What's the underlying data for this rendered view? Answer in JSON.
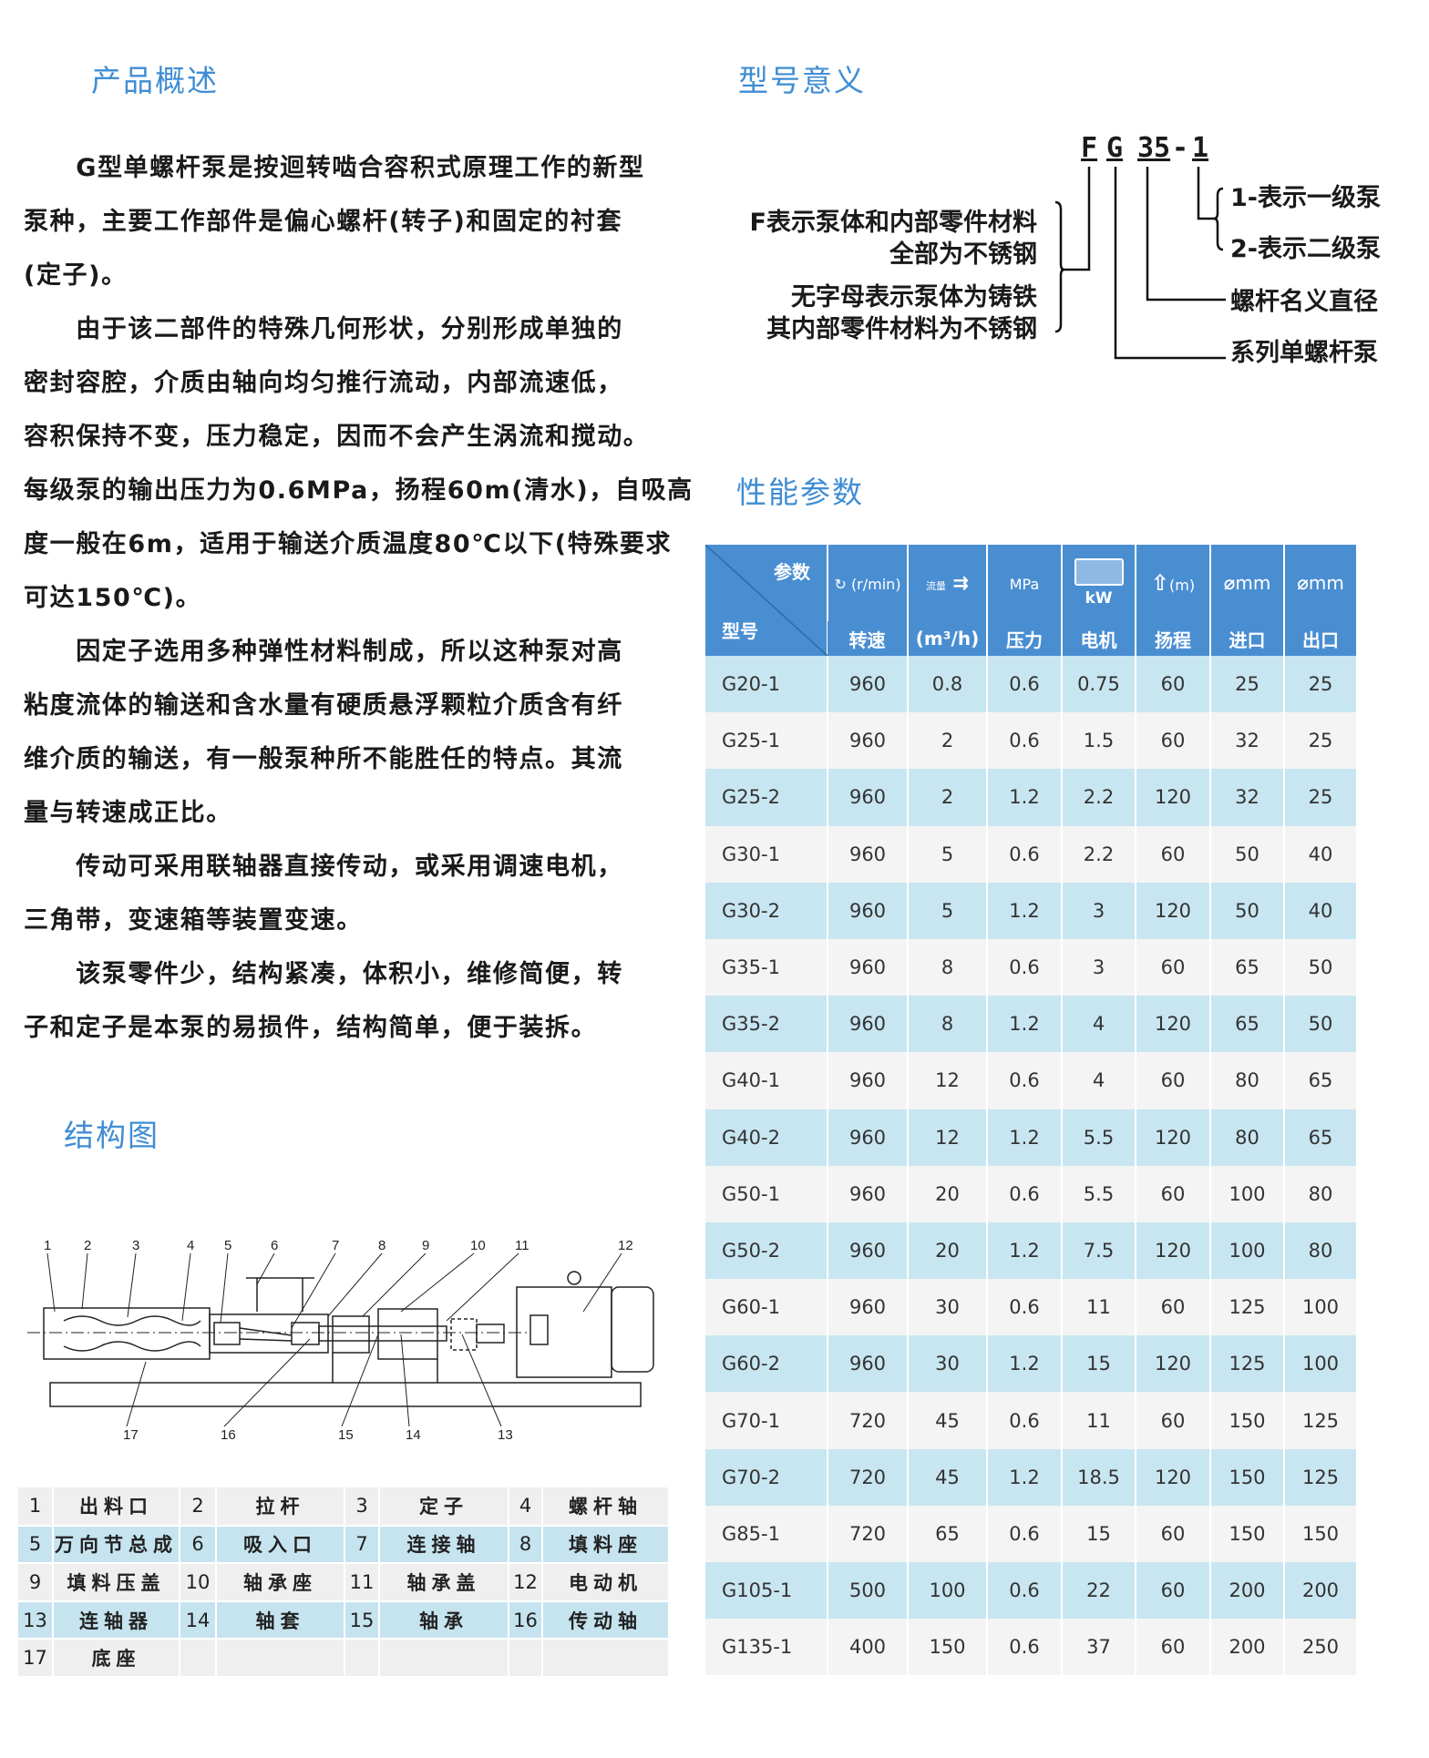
{
  "sections": {
    "overview": "产品概述",
    "model_meaning": "型号意义",
    "performance": "性能参数",
    "structure": "结构图"
  },
  "overview_lines": [
    "　　G型单螺杆泵是按迴转啮合容积式原理工作的新型",
    "泵种，主要工作部件是偏心螺杆(转子)和固定的衬套",
    "(定子)。",
    "　　由于该二部件的特殊几何形状，分别形成单独的",
    "密封容腔，介质由轴向均匀推行流动，内部流速低，",
    "容积保持不变，压力稳定，因而不会产生涡流和搅动。",
    "每级泵的输出压力为0.6MPa，扬程60m(清水)，自吸高",
    "度一般在6m，适用于输送介质温度80℃以下(特殊要求",
    "可达150℃)。",
    "　　因定子选用多种弹性材料制成，所以这种泵对高",
    "粘度流体的输送和含水量有硬质悬浮颗粒介质含有纤",
    "维介质的输送，有一般泵种所不能胜任的特点。其流",
    "量与转速成正比。",
    "　　传动可采用联轴器直接传动，或采用调速电机，",
    "三角带，变速箱等装置变速。",
    "　　该泵零件少，结构紧凑，体积小，维修简便，转",
    "子和定子是本泵的易损件，结构简单，便于装拆。"
  ],
  "model": {
    "code_parts": [
      "F",
      "G",
      "35",
      "-",
      "1"
    ],
    "left_notes": [
      "F表示泵体和内部零件材料",
      "全部为不锈钢",
      "无字母表示泵体为铸铁",
      "其内部零件材料为不锈钢"
    ],
    "right_notes": [
      "1-表示一级泵",
      "2-表示二级泵",
      "螺杆名义直径",
      "系列单螺杆泵"
    ]
  },
  "performance": {
    "corner_top": "参数",
    "corner_bottom": "型号",
    "unit_row": [
      "(r/min)",
      "流量",
      "MPa",
      "kW",
      "(m)",
      "mm",
      "mm"
    ],
    "header_row": [
      "转速",
      "(m³/h)",
      "压力",
      "电机",
      "扬程",
      "进口",
      "出口"
    ],
    "rows": [
      [
        "G20-1",
        "960",
        "0.8",
        "0.6",
        "0.75",
        "60",
        "25",
        "25"
      ],
      [
        "G25-1",
        "960",
        "2",
        "0.6",
        "1.5",
        "60",
        "32",
        "25"
      ],
      [
        "G25-2",
        "960",
        "2",
        "1.2",
        "2.2",
        "120",
        "32",
        "25"
      ],
      [
        "G30-1",
        "960",
        "5",
        "0.6",
        "2.2",
        "60",
        "50",
        "40"
      ],
      [
        "G30-2",
        "960",
        "5",
        "1.2",
        "3",
        "120",
        "50",
        "40"
      ],
      [
        "G35-1",
        "960",
        "8",
        "0.6",
        "3",
        "60",
        "65",
        "50"
      ],
      [
        "G35-2",
        "960",
        "8",
        "1.2",
        "4",
        "120",
        "65",
        "50"
      ],
      [
        "G40-1",
        "960",
        "12",
        "0.6",
        "4",
        "60",
        "80",
        "65"
      ],
      [
        "G40-2",
        "960",
        "12",
        "1.2",
        "5.5",
        "120",
        "80",
        "65"
      ],
      [
        "G50-1",
        "960",
        "20",
        "0.6",
        "5.5",
        "60",
        "100",
        "80"
      ],
      [
        "G50-2",
        "960",
        "20",
        "1.2",
        "7.5",
        "120",
        "100",
        "80"
      ],
      [
        "G60-1",
        "960",
        "30",
        "0.6",
        "11",
        "60",
        "125",
        "100"
      ],
      [
        "G60-2",
        "960",
        "30",
        "1.2",
        "15",
        "120",
        "125",
        "100"
      ],
      [
        "G70-1",
        "720",
        "45",
        "0.6",
        "11",
        "60",
        "150",
        "125"
      ],
      [
        "G70-2",
        "720",
        "45",
        "1.2",
        "18.5",
        "120",
        "150",
        "125"
      ],
      [
        "G85-1",
        "720",
        "65",
        "0.6",
        "15",
        "60",
        "150",
        "150"
      ],
      [
        "G105-1",
        "500",
        "100",
        "0.6",
        "22",
        "60",
        "200",
        "200"
      ],
      [
        "G135-1",
        "400",
        "150",
        "0.6",
        "37",
        "60",
        "200",
        "250"
      ]
    ]
  },
  "diagram": {
    "top_labels": [
      "1",
      "2",
      "3",
      "4",
      "5",
      "6",
      "7",
      "8",
      "9",
      "10",
      "11",
      "12"
    ],
    "bottom_labels": [
      "17",
      "16",
      "15",
      "14",
      "13"
    ]
  },
  "parts": [
    [
      [
        "1",
        "出料口"
      ],
      [
        "2",
        "拉杆"
      ],
      [
        "3",
        "定子"
      ],
      [
        "4",
        "螺杆轴"
      ]
    ],
    [
      [
        "5",
        "万向节总成"
      ],
      [
        "6",
        "吸入口"
      ],
      [
        "7",
        "连接轴"
      ],
      [
        "8",
        "填料座"
      ]
    ],
    [
      [
        "9",
        "填料压盖"
      ],
      [
        "10",
        "轴承座"
      ],
      [
        "11",
        "轴承盖"
      ],
      [
        "12",
        "电动机"
      ]
    ],
    [
      [
        "13",
        "连轴器"
      ],
      [
        "14",
        "轴套"
      ],
      [
        "15",
        "轴承"
      ],
      [
        "16",
        "传动轴"
      ]
    ],
    [
      [
        "17",
        "底座"
      ],
      [
        "",
        ""
      ],
      [
        "",
        ""
      ],
      [
        "",
        ""
      ]
    ]
  ],
  "colors": {
    "title": "#3f8dd3",
    "table_header": "#4a8ed2",
    "row_blue": "#c8e6f1",
    "row_gray": "#f4f4f4"
  }
}
